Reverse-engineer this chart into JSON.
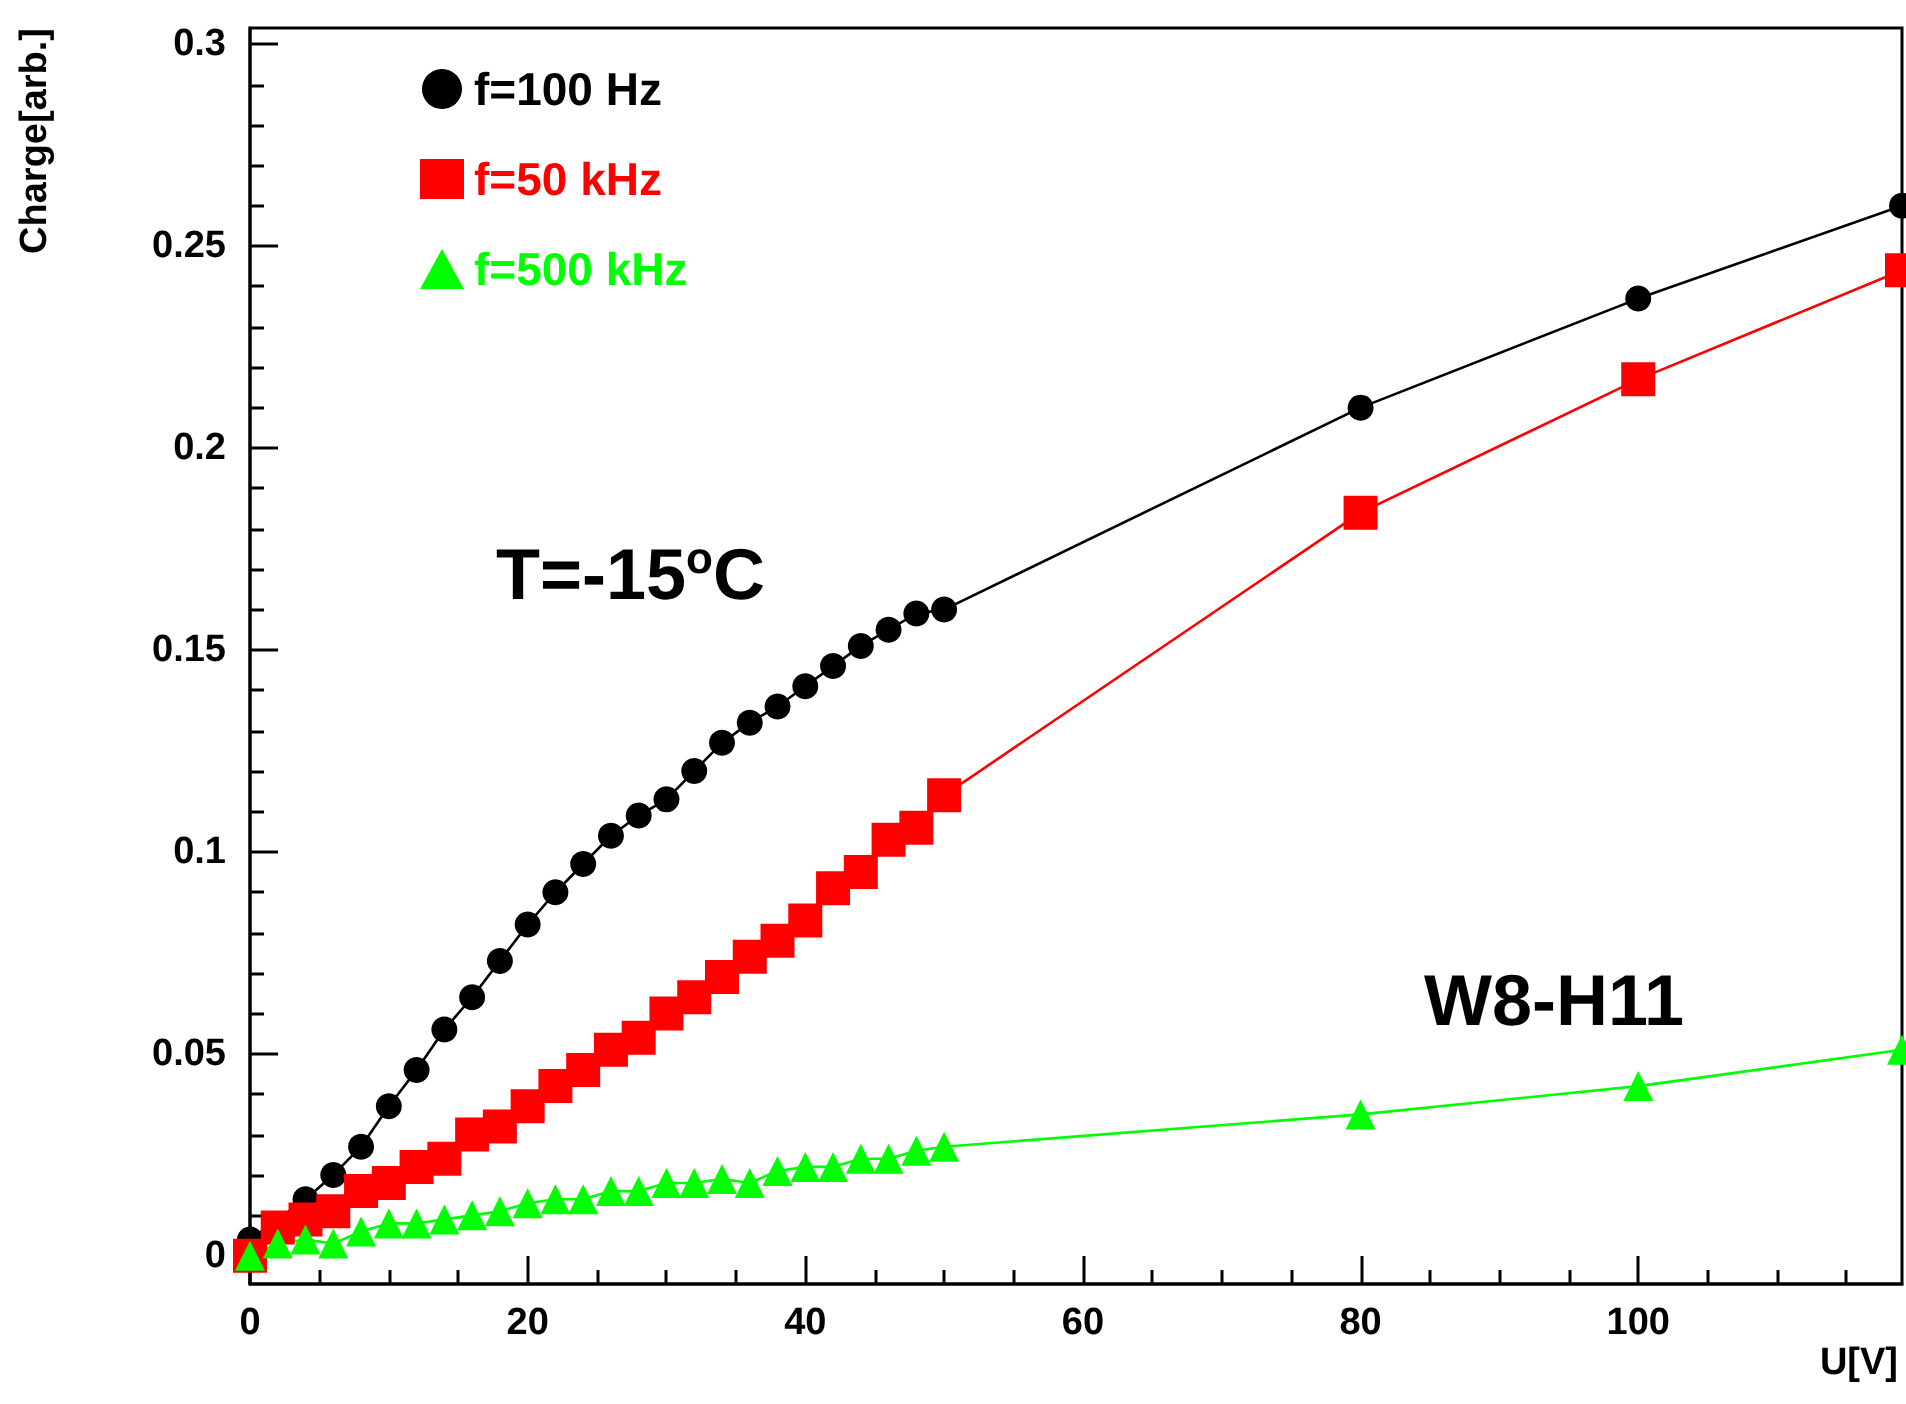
{
  "chart_data": {
    "type": "line",
    "xlabel": "U[V]",
    "ylabel": "Charge[arb.]",
    "annotations": [
      "T=-15$^{o}$C",
      "W8-H11"
    ],
    "xlim": [
      0,
      119
    ],
    "xticks": [
      0,
      20,
      40,
      60,
      80,
      100
    ],
    "ylim": [
      -0.007,
      0.304
    ],
    "yticks": [
      0,
      0.05,
      0.1,
      0.15,
      0.2,
      0.25,
      0.3
    ],
    "grid": false,
    "legend": "top left",
    "line_style": "solid",
    "series": [
      {
        "name": "f=100 Hz",
        "color": "#000000",
        "marker": "circle",
        "x": [
          0,
          2,
          4,
          6,
          8,
          10,
          12,
          14,
          16,
          18,
          20,
          22,
          24,
          26,
          28,
          30,
          32,
          34,
          36,
          38,
          40,
          42,
          44,
          46,
          48,
          50,
          80,
          100,
          119
        ],
        "values": [
          0.004,
          null,
          0.014,
          0.02,
          0.027,
          0.037,
          0.046,
          0.056,
          0.064,
          0.073,
          0.082,
          0.09,
          0.097,
          0.104,
          0.109,
          0.113,
          0.12,
          0.127,
          0.132,
          0.136,
          0.141,
          0.146,
          0.151,
          0.155,
          0.159,
          0.16,
          0.21,
          0.237,
          0.26
        ]
      },
      {
        "name": "f=50 kHz",
        "color": "#ff0000",
        "marker": "square",
        "x": [
          0,
          2,
          4,
          6,
          8,
          10,
          12,
          14,
          16,
          18,
          20,
          22,
          24,
          26,
          28,
          30,
          32,
          34,
          36,
          38,
          40,
          42,
          44,
          46,
          48,
          50,
          80,
          100,
          119
        ],
        "values": [
          0.0,
          0.007,
          0.009,
          0.011,
          0.016,
          0.018,
          0.022,
          0.024,
          0.03,
          0.032,
          0.037,
          0.042,
          0.046,
          0.051,
          0.054,
          0.06,
          0.064,
          0.069,
          0.074,
          0.078,
          0.083,
          0.091,
          0.095,
          0.103,
          0.106,
          0.114,
          0.184,
          0.217,
          0.244
        ]
      },
      {
        "name": "f=500 kHz",
        "color": "#00ff00",
        "marker": "triangle",
        "x": [
          0,
          2,
          4,
          6,
          8,
          10,
          12,
          14,
          16,
          18,
          20,
          22,
          24,
          26,
          28,
          30,
          32,
          34,
          36,
          38,
          40,
          42,
          44,
          46,
          48,
          50,
          80,
          100,
          119
        ],
        "values": [
          0.0,
          0.003,
          0.004,
          0.003,
          0.006,
          0.008,
          0.008,
          0.009,
          0.01,
          0.011,
          0.013,
          0.014,
          0.014,
          0.016,
          0.016,
          0.018,
          0.018,
          0.019,
          0.018,
          0.021,
          0.022,
          0.022,
          0.024,
          0.024,
          0.026,
          0.027,
          0.035,
          0.042,
          0.051
        ]
      }
    ]
  }
}
